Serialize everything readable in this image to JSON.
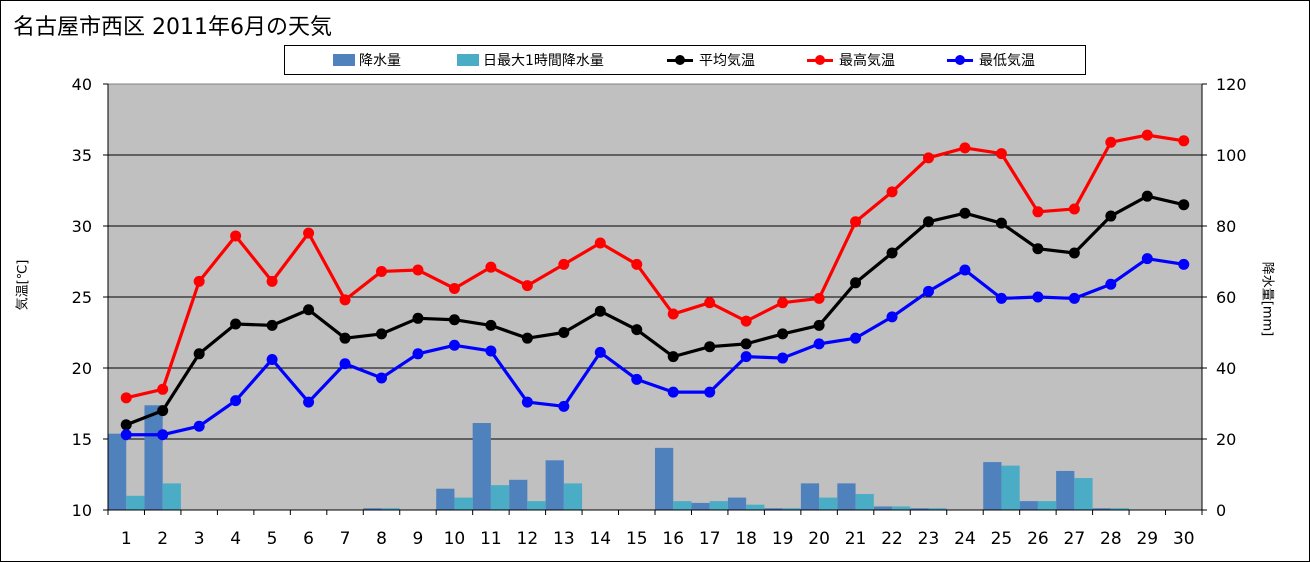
{
  "title": "名古屋市西区  2011年6月の天気",
  "legend": {
    "rain": "降水量",
    "max_hourly_rain": "日最大1時間降水量",
    "avg_temp": "平均気温",
    "max_temp": "最高気温",
    "min_temp": "最低気温"
  },
  "colors": {
    "plot_bg": "#c0c0c0",
    "rain": "#4f81bd",
    "max_hourly_rain": "#4bacc6",
    "avg_temp": "#000000",
    "max_temp": "#ff0000",
    "min_temp": "#0000ff"
  },
  "chart_data": {
    "type": "line",
    "title": "名古屋市西区  2011年6月の天気",
    "xlabel": "",
    "ylabel": "気温[℃]",
    "y2label": "降水量[mm]",
    "ylim": [
      10,
      40
    ],
    "y2lim": [
      0,
      120
    ],
    "yticks": [
      10,
      15,
      20,
      25,
      30,
      35,
      40
    ],
    "y2ticks": [
      0,
      20,
      40,
      60,
      80,
      100,
      120
    ],
    "grid": true,
    "legend_position": "top",
    "categories": [
      "1",
      "2",
      "3",
      "4",
      "5",
      "6",
      "7",
      "8",
      "9",
      "10",
      "11",
      "12",
      "13",
      "14",
      "15",
      "16",
      "17",
      "18",
      "19",
      "20",
      "21",
      "22",
      "23",
      "24",
      "25",
      "26",
      "27",
      "28",
      "29",
      "30"
    ],
    "series": [
      {
        "name": "降水量",
        "type": "bar",
        "axis": "right",
        "values": [
          21.5,
          29.5,
          0,
          0,
          0,
          0,
          0,
          0.5,
          0,
          6,
          24.5,
          8.5,
          14,
          0,
          0,
          17.5,
          2,
          3.5,
          0.5,
          7.5,
          7.5,
          1,
          0.5,
          0,
          13.5,
          2.5,
          11,
          0.5,
          0,
          0
        ]
      },
      {
        "name": "日最大1時間降水量",
        "type": "bar",
        "axis": "right",
        "values": [
          4,
          7.5,
          0,
          0,
          0,
          0,
          0,
          0.5,
          0,
          3.5,
          7,
          2.5,
          7.5,
          0,
          0,
          2.5,
          2.5,
          1.5,
          0.5,
          3.5,
          4.5,
          1,
          0.5,
          0,
          12.5,
          2.5,
          9,
          0.5,
          0,
          0
        ]
      },
      {
        "name": "平均気温",
        "type": "line",
        "axis": "left",
        "values": [
          16.0,
          17.0,
          21.0,
          23.1,
          23.0,
          24.1,
          22.1,
          22.4,
          23.5,
          23.4,
          23.0,
          22.1,
          22.5,
          24.0,
          22.7,
          20.8,
          21.5,
          21.7,
          22.4,
          23.0,
          26.0,
          28.1,
          30.3,
          30.9,
          30.2,
          28.4,
          28.1,
          30.7,
          32.1,
          31.5
        ]
      },
      {
        "name": "最高気温",
        "type": "line",
        "axis": "left",
        "values": [
          17.9,
          18.5,
          26.1,
          29.3,
          26.1,
          29.5,
          24.8,
          26.8,
          26.9,
          25.6,
          27.1,
          25.8,
          27.3,
          28.8,
          27.3,
          23.8,
          24.6,
          23.3,
          24.6,
          24.9,
          30.3,
          32.4,
          34.8,
          35.5,
          35.1,
          31.0,
          31.2,
          35.9,
          36.4,
          36.0
        ]
      },
      {
        "name": "最低気温",
        "type": "line",
        "axis": "left",
        "values": [
          15.3,
          15.3,
          15.9,
          17.7,
          20.6,
          17.6,
          20.3,
          19.3,
          21.0,
          21.6,
          21.2,
          17.6,
          17.3,
          21.1,
          19.2,
          18.3,
          18.3,
          20.8,
          20.7,
          21.7,
          22.1,
          23.6,
          25.4,
          26.9,
          24.9,
          25.0,
          24.9,
          25.9,
          27.7,
          27.3
        ]
      }
    ]
  }
}
